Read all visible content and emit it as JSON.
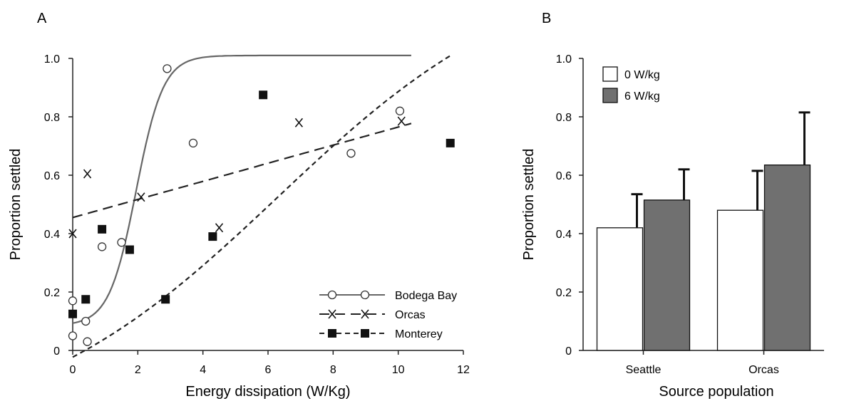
{
  "chart_data": [
    {
      "panel_label": "A",
      "type": "scatter",
      "xlabel": "Energy dissipation (W/Kg)",
      "ylabel": "Proportion settled",
      "xlim": [
        0,
        12
      ],
      "ylim": [
        0,
        1.0
      ],
      "xticks": [
        "0",
        "2",
        "4",
        "6",
        "8",
        "10",
        "12"
      ],
      "yticks": [
        "0",
        "0.2",
        "0.4",
        "0.6",
        "0.8",
        "1.0"
      ],
      "grid": false,
      "legend_position": "bottom-right",
      "series": [
        {
          "name": "Bodega Bay",
          "marker": "open-circle",
          "line": "solid",
          "color": "#666666",
          "points": [
            [
              0,
              0.05
            ],
            [
              0,
              0.17
            ],
            [
              0.4,
              0.1
            ],
            [
              0.45,
              0.03
            ],
            [
              0.9,
              0.355
            ],
            [
              1.5,
              0.37
            ],
            [
              2.9,
              0.965
            ],
            [
              3.7,
              0.71
            ],
            [
              8.55,
              0.675
            ],
            [
              10.05,
              0.82
            ]
          ],
          "fit": {
            "kind": "logistic",
            "lower": 0.085,
            "upper": 1.01,
            "midpoint": 1.95,
            "slope": 2.4,
            "x_range": [
              0,
              10.4
            ]
          }
        },
        {
          "name": "Orcas",
          "marker": "x",
          "line": "long-dash",
          "color": "#222222",
          "points": [
            [
              0,
              0.4
            ],
            [
              0.45,
              0.605
            ],
            [
              2.1,
              0.525
            ],
            [
              4.5,
              0.42
            ],
            [
              6.95,
              0.78
            ],
            [
              10.1,
              0.785
            ]
          ],
          "fit": {
            "kind": "linear",
            "intercept": 0.455,
            "slope": 0.031,
            "x_range": [
              0,
              10.4
            ]
          }
        },
        {
          "name": "Monterey",
          "marker": "filled-square",
          "line": "short-dash",
          "color": "#222222",
          "points": [
            [
              0,
              0.125
            ],
            [
              0.4,
              0.175
            ],
            [
              0.9,
              0.415
            ],
            [
              1.75,
              0.345
            ],
            [
              2.85,
              0.175
            ],
            [
              4.3,
              0.39
            ],
            [
              5.85,
              0.875
            ],
            [
              11.6,
              0.71
            ]
          ],
          "fit": {
            "kind": "logistic",
            "lower": -0.3,
            "upper": 1.35,
            "midpoint": 6.3,
            "slope": 0.254,
            "x_range": [
              0,
              11.6
            ]
          }
        }
      ]
    },
    {
      "panel_label": "B",
      "type": "bar",
      "xlabel": "Source population",
      "ylabel": "Proportion settled",
      "ylim": [
        0,
        1.0
      ],
      "yticks": [
        "0",
        "0.2",
        "0.4",
        "0.6",
        "0.8",
        "1.0"
      ],
      "categories": [
        "Seattle",
        "Orcas"
      ],
      "legend_position": "top-left",
      "series": [
        {
          "name": "0 W/kg",
          "color": "#ffffff",
          "values": [
            0.42,
            0.48
          ],
          "error_upper": [
            0.535,
            0.615
          ]
        },
        {
          "name": "6 W/kg",
          "color": "#707070",
          "values": [
            0.515,
            0.635
          ],
          "error_upper": [
            0.62,
            0.815
          ]
        }
      ]
    }
  ]
}
